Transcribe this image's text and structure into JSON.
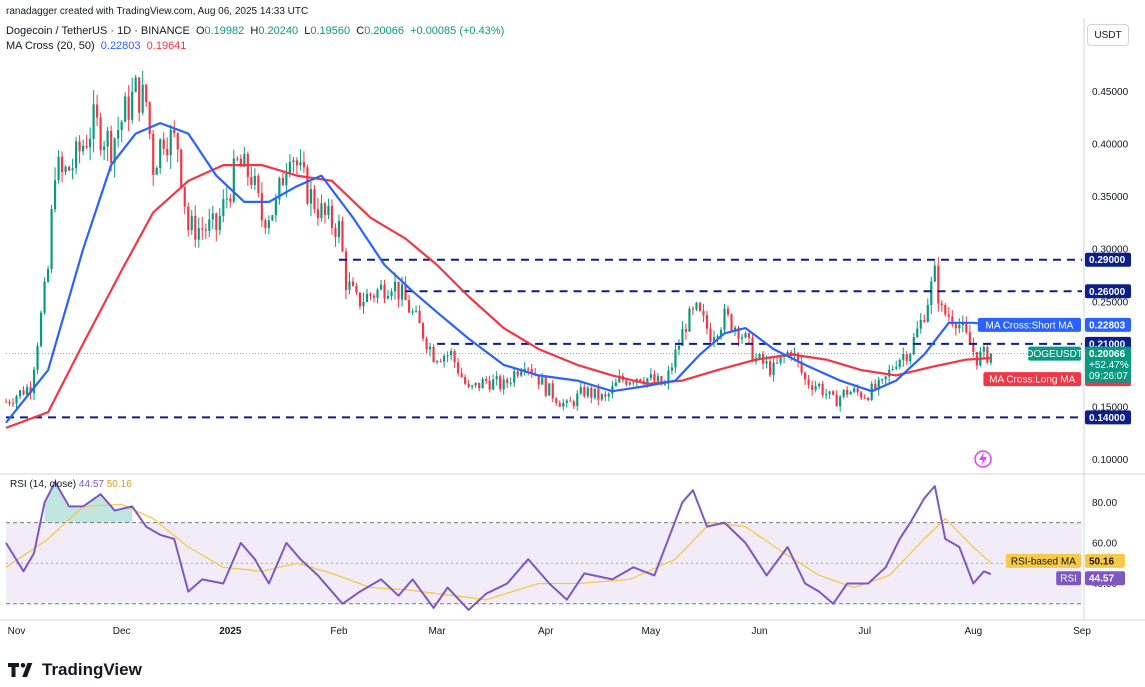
{
  "author_line": "ranadagger created with TradingView.com, Aug 06, 2025 14:33 UTC",
  "symbol_line": {
    "name": "Dogecoin / TetherUS · 1D · BINANCE",
    "o_label": "O",
    "o": "0.19982",
    "h_label": "H",
    "h": "0.20240",
    "l_label": "L",
    "l": "0.19560",
    "c_label": "C",
    "c": "0.20066",
    "change": "+0.00085 (+0.43%)"
  },
  "ma_line": {
    "name": "MA Cross (20, 50)",
    "short": "0.22803",
    "long": "0.19641"
  },
  "currency_button": "USDT",
  "brand": "TradingView",
  "colors": {
    "up": "#089981",
    "down": "#f23645",
    "ma_short": "#2962ff",
    "ma_long": "#f23645",
    "level": "#0b1e8c",
    "rsi": "#7e57c2",
    "rsi_ma": "#f7c948",
    "rsi_band": "#ede7f6"
  },
  "chart_data": [
    {
      "type": "candlestick",
      "title": "Dogecoin / TetherUS · 1D · BINANCE",
      "ylim": [
        0.09,
        0.48
      ],
      "yticks": [
        "0.45000",
        "0.40000",
        "0.35000",
        "0.30000",
        "0.25000",
        "0.15000",
        "0.10000"
      ],
      "ytick_values": [
        0.45,
        0.4,
        0.35,
        0.3,
        0.25,
        0.15,
        0.1
      ],
      "x_labels": [
        "Nov",
        "Dec",
        "2025",
        "Feb",
        "Mar",
        "Apr",
        "May",
        "Jun",
        "Jul",
        "Aug",
        "Sep"
      ],
      "x_label_dates": [
        "2024-11-01",
        "2024-12-01",
        "2025-01-01",
        "2025-02-01",
        "2025-03-01",
        "2025-04-01",
        "2025-05-01",
        "2025-06-01",
        "2025-07-01",
        "2025-08-01",
        "2025-09-01"
      ],
      "x_range": [
        "2024-10-29",
        "2025-09-01"
      ],
      "close_path": [
        [
          "2024-10-29",
          0.155
        ],
        [
          "2024-11-05",
          0.17
        ],
        [
          "2024-11-10",
          0.28
        ],
        [
          "2024-11-12",
          0.38
        ],
        [
          "2024-11-14",
          0.37
        ],
        [
          "2024-11-17",
          0.38
        ],
        [
          "2024-11-23",
          0.42
        ],
        [
          "2024-11-28",
          0.4
        ],
        [
          "2024-12-02",
          0.43
        ],
        [
          "2024-12-05",
          0.45
        ],
        [
          "2024-12-08",
          0.44
        ],
        [
          "2024-12-10",
          0.38
        ],
        [
          "2024-12-13",
          0.41
        ],
        [
          "2024-12-17",
          0.4
        ],
        [
          "2024-12-20",
          0.32
        ],
        [
          "2024-12-23",
          0.32
        ],
        [
          "2024-12-28",
          0.32
        ],
        [
          "2025-01-03",
          0.38
        ],
        [
          "2025-01-07",
          0.37
        ],
        [
          "2025-01-10",
          0.33
        ],
        [
          "2025-01-14",
          0.34
        ],
        [
          "2025-01-18",
          0.4
        ],
        [
          "2025-01-21",
          0.37
        ],
        [
          "2025-01-24",
          0.35
        ],
        [
          "2025-01-28",
          0.33
        ],
        [
          "2025-02-01",
          0.32
        ],
        [
          "2025-02-03",
          0.27
        ],
        [
          "2025-02-06",
          0.25
        ],
        [
          "2025-02-12",
          0.26
        ],
        [
          "2025-02-16",
          0.27
        ],
        [
          "2025-02-20",
          0.25
        ],
        [
          "2025-02-25",
          0.22
        ],
        [
          "2025-02-28",
          0.2
        ],
        [
          "2025-03-05",
          0.2
        ],
        [
          "2025-03-10",
          0.165
        ],
        [
          "2025-03-15",
          0.175
        ],
        [
          "2025-03-20",
          0.17
        ],
        [
          "2025-03-26",
          0.195
        ],
        [
          "2025-04-01",
          0.168
        ],
        [
          "2025-04-07",
          0.15
        ],
        [
          "2025-04-12",
          0.165
        ],
        [
          "2025-04-18",
          0.157
        ],
        [
          "2025-04-22",
          0.175
        ],
        [
          "2025-04-28",
          0.18
        ],
        [
          "2025-05-05",
          0.17
        ],
        [
          "2025-05-09",
          0.21
        ],
        [
          "2025-05-11",
          0.23
        ],
        [
          "2025-05-14",
          0.24
        ],
        [
          "2025-05-18",
          0.22
        ],
        [
          "2025-05-22",
          0.235
        ],
        [
          "2025-05-26",
          0.225
        ],
        [
          "2025-05-31",
          0.195
        ],
        [
          "2025-06-05",
          0.185
        ],
        [
          "2025-06-10",
          0.205
        ],
        [
          "2025-06-14",
          0.175
        ],
        [
          "2025-06-18",
          0.17
        ],
        [
          "2025-06-22",
          0.155
        ],
        [
          "2025-06-26",
          0.165
        ],
        [
          "2025-07-01",
          0.162
        ],
        [
          "2025-07-06",
          0.17
        ],
        [
          "2025-07-10",
          0.195
        ],
        [
          "2025-07-14",
          0.205
        ],
        [
          "2025-07-17",
          0.23
        ],
        [
          "2025-07-21",
          0.275
        ],
        [
          "2025-07-23",
          0.24
        ],
        [
          "2025-07-27",
          0.235
        ],
        [
          "2025-07-30",
          0.215
        ],
        [
          "2025-08-02",
          0.197
        ],
        [
          "2025-08-06",
          0.20066
        ]
      ],
      "ma_short": {
        "name": "MA Cross:Short MA",
        "value": "0.22803",
        "values": [
          [
            "2024-10-29",
            0.135
          ],
          [
            "2024-11-10",
            0.185
          ],
          [
            "2024-11-20",
            0.3
          ],
          [
            "2024-11-28",
            0.38
          ],
          [
            "2024-12-05",
            0.41
          ],
          [
            "2024-12-12",
            0.42
          ],
          [
            "2024-12-20",
            0.41
          ],
          [
            "2024-12-28",
            0.37
          ],
          [
            "2025-01-05",
            0.345
          ],
          [
            "2025-01-12",
            0.345
          ],
          [
            "2025-01-20",
            0.36
          ],
          [
            "2025-01-27",
            0.37
          ],
          [
            "2025-02-05",
            0.33
          ],
          [
            "2025-02-14",
            0.285
          ],
          [
            "2025-02-22",
            0.26
          ],
          [
            "2025-03-01",
            0.24
          ],
          [
            "2025-03-10",
            0.215
          ],
          [
            "2025-03-20",
            0.19
          ],
          [
            "2025-03-30",
            0.18
          ],
          [
            "2025-04-10",
            0.175
          ],
          [
            "2025-04-20",
            0.165
          ],
          [
            "2025-04-30",
            0.17
          ],
          [
            "2025-05-08",
            0.175
          ],
          [
            "2025-05-15",
            0.2
          ],
          [
            "2025-05-22",
            0.22
          ],
          [
            "2025-05-28",
            0.225
          ],
          [
            "2025-06-05",
            0.205
          ],
          [
            "2025-06-14",
            0.19
          ],
          [
            "2025-06-24",
            0.175
          ],
          [
            "2025-07-03",
            0.165
          ],
          [
            "2025-07-10",
            0.175
          ],
          [
            "2025-07-18",
            0.2
          ],
          [
            "2025-07-25",
            0.23
          ],
          [
            "2025-08-01",
            0.23
          ],
          [
            "2025-08-06",
            0.228
          ]
        ]
      },
      "ma_long": {
        "name": "MA Cross:Long MA",
        "value": "0.19641",
        "values": [
          [
            "2024-10-29",
            0.13
          ],
          [
            "2024-11-10",
            0.145
          ],
          [
            "2024-11-20",
            0.21
          ],
          [
            "2024-12-01",
            0.28
          ],
          [
            "2024-12-10",
            0.335
          ],
          [
            "2024-12-20",
            0.365
          ],
          [
            "2024-12-30",
            0.38
          ],
          [
            "2025-01-10",
            0.38
          ],
          [
            "2025-01-20",
            0.37
          ],
          [
            "2025-01-30",
            0.365
          ],
          [
            "2025-02-10",
            0.33
          ],
          [
            "2025-02-20",
            0.31
          ],
          [
            "2025-03-01",
            0.285
          ],
          [
            "2025-03-10",
            0.255
          ],
          [
            "2025-03-20",
            0.225
          ],
          [
            "2025-03-30",
            0.205
          ],
          [
            "2025-04-10",
            0.19
          ],
          [
            "2025-04-20",
            0.18
          ],
          [
            "2025-04-30",
            0.172
          ],
          [
            "2025-05-10",
            0.175
          ],
          [
            "2025-05-20",
            0.185
          ],
          [
            "2025-05-31",
            0.195
          ],
          [
            "2025-06-10",
            0.2
          ],
          [
            "2025-06-20",
            0.195
          ],
          [
            "2025-06-30",
            0.185
          ],
          [
            "2025-07-10",
            0.18
          ],
          [
            "2025-07-20",
            0.188
          ],
          [
            "2025-07-30",
            0.195
          ],
          [
            "2025-08-06",
            0.1964
          ]
        ]
      },
      "horizontal_levels": [
        {
          "value": 0.29,
          "label": "0.29000",
          "from": "2025-02-01"
        },
        {
          "value": 0.26,
          "label": "0.26000",
          "from": "2025-02-20"
        },
        {
          "value": 0.21,
          "label": "0.21000",
          "from": "2025-03-01"
        },
        {
          "value": 0.14,
          "label": "0.14000",
          "from": "2024-10-29"
        }
      ],
      "price_label": {
        "symbol": "DOGEUSDT",
        "value": "0.20066",
        "change": "+52.47%",
        "countdown": "09:26:07"
      }
    },
    {
      "type": "line",
      "title": "RSI (14, close)",
      "rsi_value": "44.57",
      "rsi_ma_name": "RSI-based MA",
      "rsi_ma_value": "50.16",
      "ylim": [
        23,
        92
      ],
      "yticks": [
        "80.00",
        "60.00",
        "40.00"
      ],
      "ytick_values": [
        80,
        60,
        40
      ],
      "band": [
        30,
        70
      ],
      "midline": 50,
      "rsi": [
        [
          "2024-10-29",
          60
        ],
        [
          "2024-11-03",
          46
        ],
        [
          "2024-11-06",
          55
        ],
        [
          "2024-11-09",
          80
        ],
        [
          "2024-11-12",
          90
        ],
        [
          "2024-11-16",
          78
        ],
        [
          "2024-11-20",
          78
        ],
        [
          "2024-11-25",
          84
        ],
        [
          "2024-11-29",
          76
        ],
        [
          "2024-12-04",
          78
        ],
        [
          "2024-12-08",
          68
        ],
        [
          "2024-12-12",
          64
        ],
        [
          "2024-12-16",
          62
        ],
        [
          "2024-12-20",
          36
        ],
        [
          "2024-12-24",
          42
        ],
        [
          "2024-12-30",
          40
        ],
        [
          "2025-01-04",
          60
        ],
        [
          "2025-01-08",
          52
        ],
        [
          "2025-01-12",
          40
        ],
        [
          "2025-01-17",
          60
        ],
        [
          "2025-01-21",
          52
        ],
        [
          "2025-01-26",
          44
        ],
        [
          "2025-02-02",
          30
        ],
        [
          "2025-02-07",
          36
        ],
        [
          "2025-02-13",
          42
        ],
        [
          "2025-02-18",
          34
        ],
        [
          "2025-02-22",
          42
        ],
        [
          "2025-02-28",
          28
        ],
        [
          "2025-03-04",
          38
        ],
        [
          "2025-03-10",
          27
        ],
        [
          "2025-03-15",
          35
        ],
        [
          "2025-03-21",
          40
        ],
        [
          "2025-03-27",
          52
        ],
        [
          "2025-04-02",
          40
        ],
        [
          "2025-04-07",
          32
        ],
        [
          "2025-04-12",
          45
        ],
        [
          "2025-04-20",
          42
        ],
        [
          "2025-04-26",
          48
        ],
        [
          "2025-05-02",
          44
        ],
        [
          "2025-05-06",
          62
        ],
        [
          "2025-05-10",
          80
        ],
        [
          "2025-05-13",
          86
        ],
        [
          "2025-05-17",
          68
        ],
        [
          "2025-05-22",
          70
        ],
        [
          "2025-05-28",
          60
        ],
        [
          "2025-06-03",
          44
        ],
        [
          "2025-06-09",
          58
        ],
        [
          "2025-06-14",
          40
        ],
        [
          "2025-06-18",
          36
        ],
        [
          "2025-06-22",
          30
        ],
        [
          "2025-06-26",
          40
        ],
        [
          "2025-07-02",
          40
        ],
        [
          "2025-07-07",
          48
        ],
        [
          "2025-07-11",
          62
        ],
        [
          "2025-07-14",
          70
        ],
        [
          "2025-07-18",
          82
        ],
        [
          "2025-07-21",
          88
        ],
        [
          "2025-07-24",
          62
        ],
        [
          "2025-07-28",
          58
        ],
        [
          "2025-08-01",
          40
        ],
        [
          "2025-08-04",
          46
        ],
        [
          "2025-08-06",
          44.57
        ]
      ],
      "rsi_ma": [
        [
          "2024-10-29",
          48
        ],
        [
          "2024-11-10",
          62
        ],
        [
          "2024-11-20",
          78
        ],
        [
          "2024-12-01",
          79
        ],
        [
          "2024-12-10",
          72
        ],
        [
          "2024-12-20",
          58
        ],
        [
          "2024-12-30",
          48
        ],
        [
          "2025-01-10",
          46
        ],
        [
          "2025-01-20",
          50
        ],
        [
          "2025-01-30",
          45
        ],
        [
          "2025-02-10",
          38
        ],
        [
          "2025-02-20",
          37
        ],
        [
          "2025-03-01",
          35
        ],
        [
          "2025-03-15",
          32
        ],
        [
          "2025-03-30",
          40
        ],
        [
          "2025-04-10",
          40
        ],
        [
          "2025-04-25",
          42
        ],
        [
          "2025-05-08",
          52
        ],
        [
          "2025-05-18",
          70
        ],
        [
          "2025-05-28",
          68
        ],
        [
          "2025-06-08",
          55
        ],
        [
          "2025-06-18",
          44
        ],
        [
          "2025-06-28",
          38
        ],
        [
          "2025-07-08",
          44
        ],
        [
          "2025-07-18",
          62
        ],
        [
          "2025-07-24",
          72
        ],
        [
          "2025-08-01",
          58
        ],
        [
          "2025-08-06",
          50.16
        ]
      ]
    }
  ]
}
